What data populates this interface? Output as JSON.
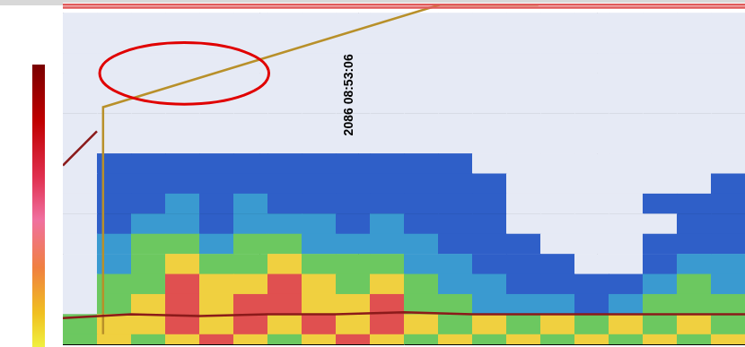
{
  "chart_data": {
    "type": "echogram",
    "xlim": [
      0,
      100
    ],
    "xticks": [
      28.9,
      43.4,
      78.3
    ],
    "ylim": [
      -5,
      165
    ],
    "yticks": [
      50,
      100,
      150
    ],
    "tick_labels": "y",
    "grid": true,
    "annotations": [
      {
        "text": "2086 08:53:06",
        "x": 43.4
      }
    ],
    "series": [
      {
        "color": "#e05a5a",
        "x": [
          0,
          100
        ],
        "values": [
          -4,
          -4
        ]
      },
      {
        "color": "#e05a5a",
        "x": [
          0,
          100
        ],
        "values": [
          -2.5,
          -2.5
        ]
      },
      {
        "color": "#8b1a1a",
        "x": [
          0,
          10,
          20,
          30,
          40,
          50,
          60,
          70,
          80,
          90,
          100
        ],
        "values": [
          152,
          150,
          151,
          150,
          150,
          149,
          150,
          150,
          150,
          150,
          150
        ]
      },
      {
        "color": "#8b1a1a",
        "x": [
          0,
          5
        ],
        "values": [
          76,
          59
        ]
      },
      {
        "color": "#b8902a",
        "x": [
          5.9,
          5.9,
          55.3,
          69.7
        ],
        "values": [
          160,
          47,
          -4,
          -4
        ]
      }
    ],
    "cells": {
      "x_edges": [
        0,
        5,
        10,
        15,
        20,
        25,
        30,
        35,
        40,
        45,
        50,
        55,
        60,
        65,
        70,
        75,
        80,
        85,
        90,
        95,
        100
      ],
      "depth_edges": [
        -5,
        0,
        10,
        20,
        30,
        40,
        50,
        60,
        70,
        80,
        90,
        100,
        110,
        120,
        130,
        140,
        150,
        160,
        165
      ],
      "level_colors": [
        "#ffffff",
        "#e6eaf5",
        "#2f5fc8",
        "#3a9ad0",
        "#6cc860",
        "#f0d040",
        "#e05050"
      ],
      "levels": [
        [
          0,
          0,
          0,
          0,
          0,
          0,
          0,
          0,
          0,
          0,
          0,
          0,
          0,
          0,
          0,
          0,
          0,
          0,
          0,
          0
        ],
        [
          1,
          1,
          1,
          1,
          1,
          1,
          1,
          1,
          1,
          1,
          1,
          1,
          1,
          1,
          1,
          1,
          1,
          1,
          1,
          1
        ],
        [
          1,
          1,
          1,
          1,
          1,
          1,
          1,
          1,
          1,
          1,
          1,
          1,
          1,
          1,
          1,
          1,
          1,
          1,
          1,
          1
        ],
        [
          1,
          1,
          1,
          1,
          1,
          1,
          1,
          1,
          1,
          1,
          1,
          1,
          1,
          1,
          1,
          1,
          1,
          1,
          1,
          1
        ],
        [
          1,
          1,
          1,
          1,
          1,
          1,
          1,
          1,
          1,
          1,
          1,
          1,
          1,
          1,
          1,
          1,
          1,
          1,
          1,
          1
        ],
        [
          1,
          1,
          1,
          1,
          1,
          1,
          1,
          1,
          1,
          1,
          1,
          1,
          1,
          1,
          1,
          1,
          1,
          1,
          1,
          1
        ],
        [
          1,
          1,
          1,
          1,
          1,
          1,
          1,
          1,
          1,
          1,
          1,
          1,
          1,
          1,
          1,
          1,
          1,
          1,
          1,
          1
        ],
        [
          1,
          1,
          1,
          1,
          1,
          1,
          1,
          1,
          1,
          1,
          1,
          1,
          1,
          1,
          1,
          1,
          1,
          1,
          1,
          1
        ],
        [
          1,
          2,
          2,
          2,
          2,
          2,
          2,
          2,
          2,
          2,
          2,
          2,
          1,
          1,
          1,
          1,
          1,
          1,
          1,
          1
        ],
        [
          1,
          2,
          2,
          2,
          2,
          2,
          2,
          2,
          2,
          2,
          2,
          2,
          2,
          1,
          1,
          1,
          1,
          1,
          1,
          2
        ],
        [
          1,
          2,
          2,
          3,
          2,
          3,
          2,
          2,
          2,
          2,
          2,
          2,
          2,
          1,
          1,
          1,
          1,
          2,
          2,
          2
        ],
        [
          1,
          2,
          3,
          3,
          2,
          3,
          3,
          3,
          2,
          3,
          2,
          2,
          2,
          1,
          1,
          1,
          1,
          1,
          2,
          2
        ],
        [
          1,
          3,
          4,
          4,
          3,
          4,
          4,
          3,
          3,
          3,
          3,
          2,
          2,
          2,
          1,
          1,
          1,
          2,
          2,
          2
        ],
        [
          1,
          3,
          4,
          5,
          4,
          4,
          5,
          4,
          4,
          4,
          3,
          3,
          2,
          2,
          2,
          1,
          1,
          2,
          3,
          3
        ],
        [
          1,
          4,
          4,
          6,
          5,
          5,
          6,
          5,
          4,
          5,
          4,
          3,
          3,
          2,
          2,
          2,
          2,
          3,
          4,
          3
        ],
        [
          1,
          4,
          5,
          6,
          5,
          6,
          6,
          5,
          5,
          6,
          4,
          4,
          3,
          3,
          3,
          2,
          3,
          4,
          4,
          4
        ],
        [
          4,
          5,
          5,
          6,
          5,
          6,
          5,
          6,
          5,
          6,
          5,
          4,
          5,
          4,
          5,
          4,
          5,
          4,
          5,
          4
        ],
        [
          4,
          5,
          4,
          5,
          6,
          5,
          4,
          5,
          6,
          5,
          4,
          5,
          4,
          5,
          4,
          5,
          4,
          5,
          4,
          5
        ]
      ]
    }
  }
}
